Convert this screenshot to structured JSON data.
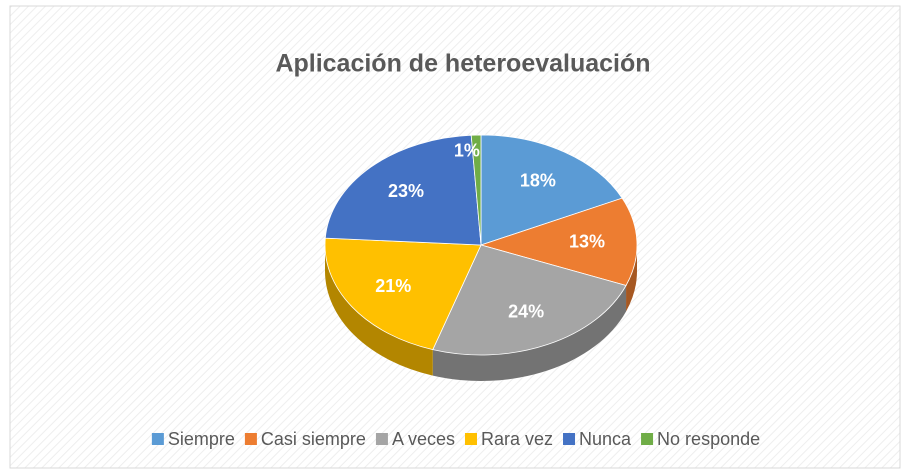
{
  "chart_data": {
    "type": "pie",
    "title": "Aplicación de heteroevaluación",
    "categories": [
      "Siempre",
      "Casi siempre",
      "A veces",
      "Rara vez",
      "Nunca",
      "No responde"
    ],
    "values": [
      18,
      13,
      24,
      21,
      23,
      1
    ],
    "value_labels": [
      "18%",
      "13%",
      "24%",
      "21%",
      "23%",
      "1%"
    ],
    "colors": [
      "#5b9bd5",
      "#ed7d31",
      "#a5a5a5",
      "#ffc000",
      "#4472c4",
      "#70ad47"
    ],
    "legend": "bottom"
  }
}
